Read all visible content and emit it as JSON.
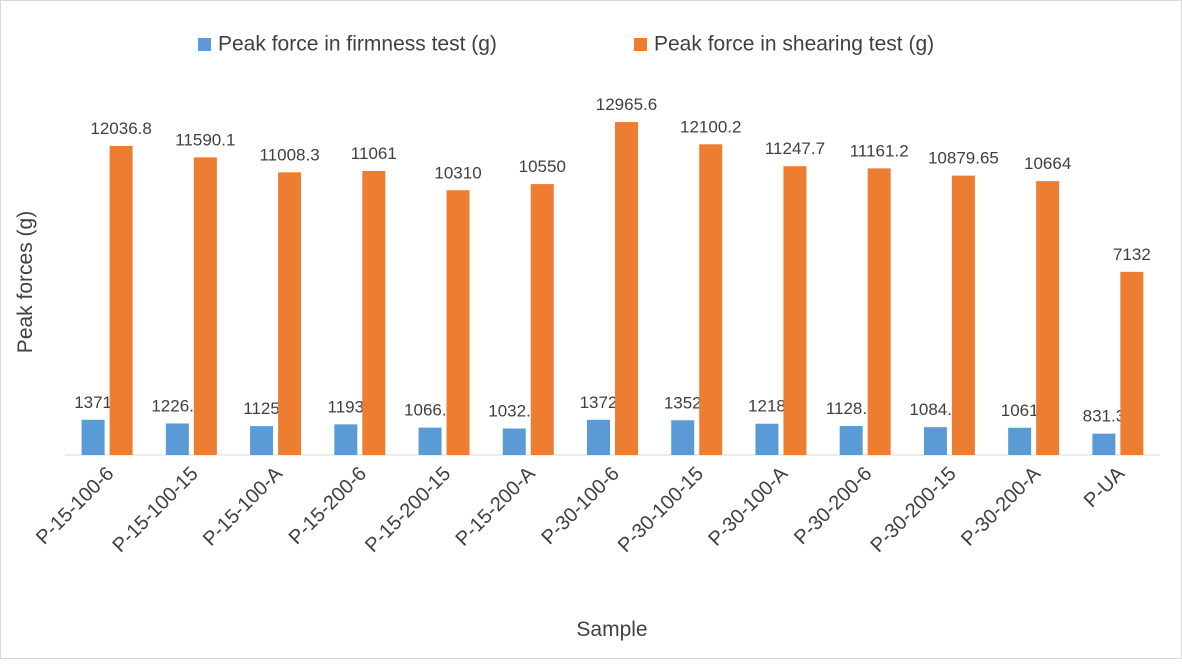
{
  "chart_data": {
    "type": "bar",
    "x_label": "Sample",
    "y_label": "Peak forces (g)",
    "categories": [
      "P-15-100-6",
      "P-15-100-15",
      "P-15-100-A",
      "P-15-200-6",
      "P-15-200-15",
      "P-15-200-A",
      "P-30-100-6",
      "P-30-100-15",
      "P-30-100-A",
      "P-30-200-6",
      "P-30-200-15",
      "P-30-200-A",
      "P-UA"
    ],
    "series": [
      {
        "name": "Peak force in firmness test (g)",
        "color": "#5b9bd5",
        "values": [
          1371,
          1226.8,
          1125,
          1193,
          1066.7,
          1032.5,
          1372,
          1352,
          1218,
          1128.3,
          1084.4,
          1061,
          831.3
        ]
      },
      {
        "name": "Peak force in shearing test (g)",
        "color": "#ed7d31",
        "values": [
          12036.8,
          11590.1,
          11008.3,
          11061,
          10310,
          10550,
          12965.6,
          12100.2,
          11247.7,
          11161.2,
          10879.65,
          10664,
          7132
        ]
      }
    ],
    "ylim": [
      0,
      14000
    ],
    "legend": "top"
  }
}
